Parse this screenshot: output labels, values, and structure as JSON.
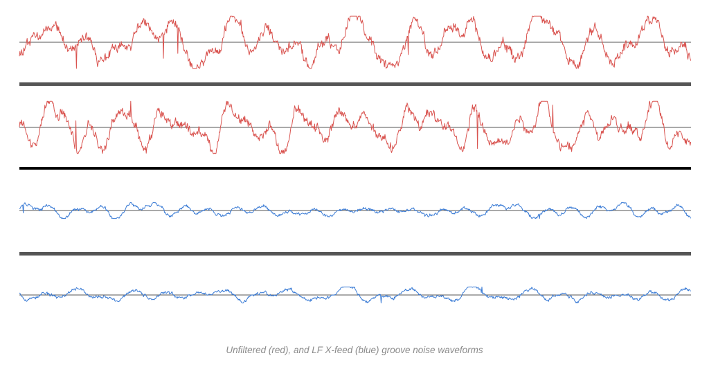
{
  "caption": "Unfiltered (red), and LF X-feed (blue) groove noise waveforms",
  "colors": {
    "background": "#ffffff",
    "baseline": "#555555",
    "separator": "#555555",
    "separator_thick": "#000000"
  },
  "tracks": [
    {
      "name": "waveform-track-red-1",
      "color": "#d9534f",
      "amplitude": "large",
      "seed": 11
    },
    {
      "name": "waveform-track-red-2",
      "color": "#d9534f",
      "amplitude": "large",
      "seed": 23
    },
    {
      "name": "waveform-track-blue-1",
      "color": "#3a7bd5",
      "amplitude": "small",
      "seed": 37
    },
    {
      "name": "waveform-track-blue-2",
      "color": "#3a7bd5",
      "amplitude": "small",
      "seed": 53
    }
  ]
}
